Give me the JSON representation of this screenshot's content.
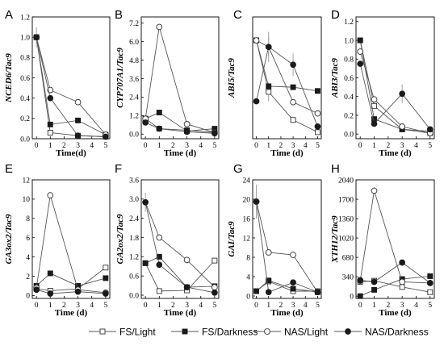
{
  "legend": [
    {
      "label": "FS/Light",
      "marker": "square",
      "fill": "white"
    },
    {
      "label": "FS/Darkness",
      "marker": "square",
      "fill": "black"
    },
    {
      "label": "NAS/Light",
      "marker": "circle",
      "fill": "white"
    },
    {
      "label": "NAS/Darkness",
      "marker": "circle",
      "fill": "black"
    }
  ],
  "colors": {
    "line": "#555555",
    "marker_dark": "#1a1a1a",
    "marker_light": "#ffffff",
    "errorbar": "#999999"
  },
  "chart_data": [
    {
      "letter": "A",
      "type": "line",
      "ylabel": "NCED6/Tac9",
      "xlabel": "Time(d)",
      "x": [
        0,
        1,
        3,
        5
      ],
      "xticks": [
        "0",
        "1",
        "2",
        "3",
        "4",
        "5"
      ],
      "ylim": [
        0,
        1.2
      ],
      "yticks": [
        "0.0",
        "0.2",
        "0.4",
        "0.6",
        "0.8",
        "1.0",
        "1.2"
      ],
      "series": [
        {
          "name": "FS/Light",
          "values": [
            1.0,
            0.06,
            0.03,
            0.02
          ],
          "errors": [
            0,
            0,
            0,
            0
          ]
        },
        {
          "name": "FS/Darkness",
          "values": [
            1.0,
            0.14,
            0.18,
            0.04
          ],
          "errors": [
            0,
            0,
            0,
            0
          ]
        },
        {
          "name": "NAS/Light",
          "values": [
            1.0,
            0.48,
            0.36,
            0.04
          ],
          "errors": [
            0.1,
            0.02,
            0.03,
            0
          ]
        },
        {
          "name": "NAS/Darkness",
          "values": [
            1.0,
            0.4,
            0.03,
            0.02
          ],
          "errors": [
            0,
            0,
            0,
            0
          ]
        }
      ]
    },
    {
      "letter": "B",
      "type": "line",
      "ylabel": "CYP707A1/Tac9",
      "xlabel": "Time (d)",
      "x": [
        0,
        1,
        3,
        5
      ],
      "xticks": [
        "0",
        "1",
        "2",
        "3",
        "4",
        "5"
      ],
      "ylim": [
        -0.3,
        7.6
      ],
      "yticks": [
        "0.0",
        "1.2",
        "2.4",
        "3.6",
        "4.8",
        "6.0",
        "7.2"
      ],
      "series": [
        {
          "name": "FS/Light",
          "values": [
            1.0,
            0.35,
            0.25,
            0.1
          ],
          "errors": [
            0,
            0,
            0,
            0
          ]
        },
        {
          "name": "FS/Darkness",
          "values": [
            1.0,
            1.4,
            0.2,
            0.35
          ],
          "errors": [
            0,
            0,
            0,
            0
          ]
        },
        {
          "name": "NAS/Light",
          "values": [
            1.0,
            6.95,
            0.65,
            0.1
          ],
          "errors": [
            0,
            0.2,
            0,
            0
          ]
        },
        {
          "name": "NAS/Darkness",
          "values": [
            0.75,
            0.35,
            0.15,
            0.05
          ],
          "errors": [
            0,
            0,
            0,
            0
          ]
        }
      ]
    },
    {
      "letter": "C",
      "type": "line",
      "ylabel": "ABI5/Tac9",
      "xlabel": "Time (d)",
      "x": [
        0,
        1,
        3,
        5
      ],
      "xticks": [
        "0",
        "1",
        "2",
        "3",
        "4",
        "5"
      ],
      "ylim": [
        -0.05,
        1.25
      ],
      "yticks": [],
      "series": [
        {
          "name": "FS/Light",
          "values": [
            1.0,
            0.45,
            0.15,
            0.02
          ],
          "errors": [
            0,
            0.1,
            0,
            0
          ]
        },
        {
          "name": "FS/Darkness",
          "values": [
            1.0,
            0.51,
            0.5,
            0.46
          ],
          "errors": [
            0,
            0,
            0,
            0
          ]
        },
        {
          "name": "NAS/Light",
          "values": [
            1.0,
            0.93,
            0.34,
            0.22
          ],
          "errors": [
            0,
            0.1,
            0,
            0
          ]
        },
        {
          "name": "NAS/Darkness",
          "values": [
            0.35,
            0.93,
            0.74,
            0.08
          ],
          "errors": [
            0,
            0.16,
            0.12,
            0
          ]
        }
      ]
    },
    {
      "letter": "D",
      "type": "line",
      "ylabel": "ABI3/Tac9",
      "xlabel": "Time (d)",
      "x": [
        0,
        1,
        3,
        5
      ],
      "xticks": [
        "0",
        "1",
        "2",
        "3",
        "4",
        "5"
      ],
      "ylim": [
        -0.05,
        1.25
      ],
      "yticks": [
        "0.0",
        "0.2",
        "0.4",
        "0.6",
        "0.8",
        "1.0",
        "1.2"
      ],
      "series": [
        {
          "name": "FS/Light",
          "values": [
            1.0,
            0.3,
            0.05,
            0.01
          ],
          "errors": [
            0,
            0,
            0,
            0
          ]
        },
        {
          "name": "FS/Darkness",
          "values": [
            1.0,
            0.16,
            0.05,
            0.03
          ],
          "errors": [
            0,
            0,
            0,
            0
          ]
        },
        {
          "name": "NAS/Light",
          "values": [
            0.88,
            0.37,
            0.08,
            0.01
          ],
          "errors": [
            0,
            0,
            0,
            0
          ]
        },
        {
          "name": "NAS/Darkness",
          "values": [
            0.75,
            0.11,
            0.43,
            0.05
          ],
          "errors": [
            0,
            0,
            0.1,
            0
          ]
        }
      ]
    },
    {
      "letter": "E",
      "type": "line",
      "ylabel": "GA3ox2/Tac9",
      "xlabel": "Time (d)",
      "x": [
        0,
        1,
        3,
        5
      ],
      "xticks": [
        "0",
        "1",
        "2",
        "3",
        "4",
        "5"
      ],
      "ylim": [
        -0.3,
        12
      ],
      "yticks": [
        "0",
        "2",
        "4",
        "6",
        "8",
        "10",
        "12"
      ],
      "series": [
        {
          "name": "FS/Light",
          "values": [
            0.7,
            0.5,
            0.7,
            2.9
          ],
          "errors": [
            0,
            0,
            0,
            0
          ]
        },
        {
          "name": "FS/Darkness",
          "values": [
            1.0,
            2.3,
            1.0,
            1.8
          ],
          "errors": [
            0,
            0,
            0,
            0
          ]
        },
        {
          "name": "NAS/Light",
          "values": [
            0.8,
            10.4,
            0.6,
            0.3
          ],
          "errors": [
            0,
            0.3,
            0,
            0
          ]
        },
        {
          "name": "NAS/Darkness",
          "values": [
            0.6,
            0.2,
            0.4,
            0.2
          ],
          "errors": [
            0,
            0,
            0,
            0
          ]
        }
      ]
    },
    {
      "letter": "F",
      "type": "line",
      "ylabel": "GA2ox2/Tac9",
      "xlabel": "Time (d)",
      "x": [
        0,
        1,
        3,
        5
      ],
      "xticks": [
        "0",
        "1",
        "2",
        "3",
        "4",
        "5"
      ],
      "ylim": [
        -0.1,
        3.6
      ],
      "yticks": [
        "0.0",
        "0.6",
        "1.2",
        "1.8",
        "2.4",
        "3.0",
        "3.6"
      ],
      "series": [
        {
          "name": "FS/Light",
          "values": [
            1.0,
            0.13,
            0.15,
            1.08
          ],
          "errors": [
            0,
            0,
            0,
            0
          ]
        },
        {
          "name": "FS/Darkness",
          "values": [
            1.0,
            1.2,
            0.25,
            0.28
          ],
          "errors": [
            0,
            0,
            0,
            0
          ]
        },
        {
          "name": "NAS/Light",
          "values": [
            2.9,
            1.8,
            1.1,
            0.25
          ],
          "errors": [
            0.3,
            0,
            0.1,
            0
          ]
        },
        {
          "name": "NAS/Darkness",
          "values": [
            2.9,
            0.95,
            0.25,
            0.08
          ],
          "errors": [
            0,
            0,
            0,
            0
          ]
        }
      ]
    },
    {
      "letter": "G",
      "type": "line",
      "ylabel": "GAI/Tac9",
      "xlabel": "Time (d)",
      "x": [
        0,
        1,
        3,
        5
      ],
      "xticks": [
        "0",
        "1",
        "2",
        "3",
        "4",
        "5"
      ],
      "ylim": [
        -0.5,
        24
      ],
      "yticks": [
        "0",
        "4",
        "8",
        "12",
        "16",
        "20",
        "24"
      ],
      "series": [
        {
          "name": "FS/Light",
          "values": [
            1.0,
            3.0,
            1.0,
            1.0
          ],
          "errors": [
            0,
            0,
            0,
            0
          ]
        },
        {
          "name": "FS/Darkness",
          "values": [
            1.0,
            3.2,
            1.5,
            0.8
          ],
          "errors": [
            0,
            0,
            0,
            0
          ]
        },
        {
          "name": "NAS/Light",
          "values": [
            19.5,
            9.0,
            8.5,
            0.8
          ],
          "errors": [
            0,
            0,
            0.6,
            0
          ]
        },
        {
          "name": "NAS/Darkness",
          "values": [
            19.5,
            0.8,
            2.8,
            0.8
          ],
          "errors": [
            3.5,
            0,
            0,
            0
          ]
        }
      ]
    },
    {
      "letter": "H",
      "type": "line",
      "ylabel": "XTH12/Tac9",
      "xlabel": "Time (d)",
      "x": [
        0,
        1,
        3,
        5
      ],
      "xticks": [
        "0",
        "1",
        "2",
        "3",
        "4",
        "5"
      ],
      "ylim": [
        -40,
        2040
      ],
      "yticks": [
        "0",
        "340",
        "680",
        "1020",
        "1360",
        "1700",
        "2040"
      ],
      "series": [
        {
          "name": "FS/Light",
          "values": [
            250,
            270,
            160,
            70
          ],
          "errors": [
            0,
            0,
            0,
            0
          ]
        },
        {
          "name": "FS/Darkness",
          "values": [
            0,
            110,
            300,
            350
          ],
          "errors": [
            0,
            0,
            0,
            0
          ]
        },
        {
          "name": "NAS/Light",
          "values": [
            270,
            1850,
            250,
            230
          ],
          "errors": [
            0,
            60,
            0,
            0
          ]
        },
        {
          "name": "NAS/Darkness",
          "values": [
            280,
            250,
            590,
            230
          ],
          "errors": [
            0,
            0,
            0,
            0
          ]
        }
      ]
    }
  ]
}
